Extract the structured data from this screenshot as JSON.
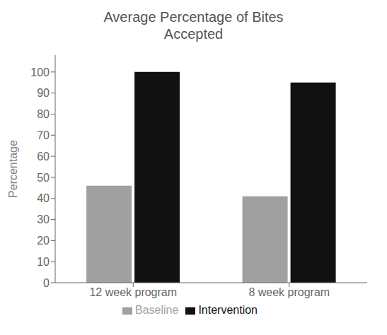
{
  "chart_data": {
    "type": "bar",
    "title": "Average Percentage of Bites\nAccepted",
    "categories": [
      "12 week program",
      "8 week program"
    ],
    "series": [
      {
        "name": "Baseline",
        "color": "#a0a0a0",
        "values": [
          46,
          41
        ]
      },
      {
        "name": "Intervention",
        "color": "#111111",
        "values": [
          100,
          95
        ]
      }
    ],
    "ylabel": "Percentage",
    "ylim": [
      0,
      108
    ],
    "yticks": [
      0,
      10,
      20,
      30,
      40,
      50,
      60,
      70,
      80,
      90,
      100
    ],
    "grid": false,
    "legend": "bottom"
  }
}
